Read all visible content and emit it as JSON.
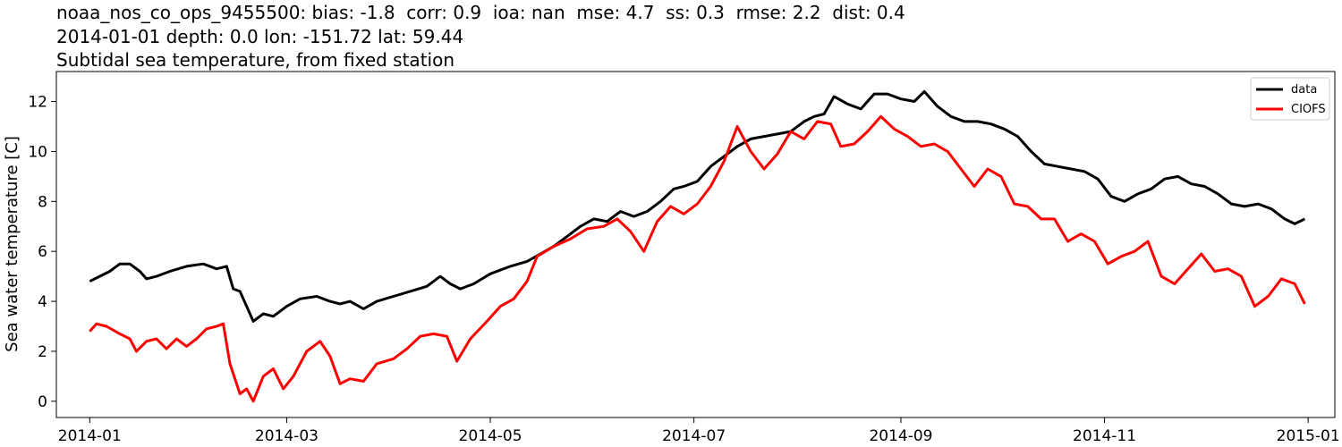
{
  "title": {
    "line1": "noaa_nos_co_ops_9455500: bias: -1.8  corr: 0.9  ioa: nan  mse: 4.7  ss: 0.3  rmse: 2.2  dist: 0.4",
    "line2": "2014-01-01 depth: 0.0 lon: -151.72 lat: 59.44",
    "line3": "Subtidal sea temperature, from fixed station"
  },
  "chart_data": {
    "type": "line",
    "ylabel": "Sea water temperature [C]",
    "xlabel": "",
    "xlim": [
      "2013-12-22",
      "2015-01-09"
    ],
    "ylim": [
      -0.65,
      13.2
    ],
    "xticks": [
      "2014-01",
      "2014-03",
      "2014-05",
      "2014-07",
      "2014-09",
      "2014-11",
      "2015-01"
    ],
    "xtick_dates": [
      "2014-01-01",
      "2014-03-01",
      "2014-05-01",
      "2014-07-01",
      "2014-09-01",
      "2014-11-01",
      "2015-01-01"
    ],
    "yticks": [
      0,
      2,
      4,
      6,
      8,
      10,
      12
    ],
    "grid": false,
    "legend": "top-right",
    "series": [
      {
        "name": "data",
        "color": "#000000",
        "points": [
          [
            "2014-01-01",
            4.8
          ],
          [
            "2014-01-04",
            5.0
          ],
          [
            "2014-01-07",
            5.2
          ],
          [
            "2014-01-10",
            5.5
          ],
          [
            "2014-01-13",
            5.5
          ],
          [
            "2014-01-16",
            5.2
          ],
          [
            "2014-01-18",
            4.9
          ],
          [
            "2014-01-21",
            5.0
          ],
          [
            "2014-01-25",
            5.2
          ],
          [
            "2014-01-30",
            5.4
          ],
          [
            "2014-02-04",
            5.5
          ],
          [
            "2014-02-08",
            5.3
          ],
          [
            "2014-02-11",
            5.4
          ],
          [
            "2014-02-13",
            4.5
          ],
          [
            "2014-02-15",
            4.4
          ],
          [
            "2014-02-17",
            3.8
          ],
          [
            "2014-02-19",
            3.2
          ],
          [
            "2014-02-22",
            3.5
          ],
          [
            "2014-02-25",
            3.4
          ],
          [
            "2014-03-01",
            3.8
          ],
          [
            "2014-03-05",
            4.1
          ],
          [
            "2014-03-10",
            4.2
          ],
          [
            "2014-03-14",
            4.0
          ],
          [
            "2014-03-17",
            3.9
          ],
          [
            "2014-03-20",
            4.0
          ],
          [
            "2014-03-24",
            3.7
          ],
          [
            "2014-03-28",
            4.0
          ],
          [
            "2014-04-02",
            4.2
          ],
          [
            "2014-04-07",
            4.4
          ],
          [
            "2014-04-12",
            4.6
          ],
          [
            "2014-04-16",
            5.0
          ],
          [
            "2014-04-19",
            4.7
          ],
          [
            "2014-04-22",
            4.5
          ],
          [
            "2014-04-26",
            4.7
          ],
          [
            "2014-05-01",
            5.1
          ],
          [
            "2014-05-07",
            5.4
          ],
          [
            "2014-05-12",
            5.6
          ],
          [
            "2014-05-16",
            5.9
          ],
          [
            "2014-05-20",
            6.2
          ],
          [
            "2014-05-24",
            6.6
          ],
          [
            "2014-05-28",
            7.0
          ],
          [
            "2014-06-01",
            7.3
          ],
          [
            "2014-06-05",
            7.2
          ],
          [
            "2014-06-09",
            7.6
          ],
          [
            "2014-06-13",
            7.4
          ],
          [
            "2014-06-17",
            7.6
          ],
          [
            "2014-06-21",
            8.0
          ],
          [
            "2014-06-25",
            8.5
          ],
          [
            "2014-06-28",
            8.6
          ],
          [
            "2014-07-02",
            8.8
          ],
          [
            "2014-07-06",
            9.4
          ],
          [
            "2014-07-10",
            9.8
          ],
          [
            "2014-07-14",
            10.2
          ],
          [
            "2014-07-18",
            10.5
          ],
          [
            "2014-07-22",
            10.6
          ],
          [
            "2014-07-26",
            10.7
          ],
          [
            "2014-07-30",
            10.8
          ],
          [
            "2014-08-03",
            11.2
          ],
          [
            "2014-08-06",
            11.4
          ],
          [
            "2014-08-09",
            11.5
          ],
          [
            "2014-08-12",
            12.2
          ],
          [
            "2014-08-16",
            11.9
          ],
          [
            "2014-08-20",
            11.7
          ],
          [
            "2014-08-24",
            12.3
          ],
          [
            "2014-08-28",
            12.3
          ],
          [
            "2014-09-01",
            12.1
          ],
          [
            "2014-09-05",
            12.0
          ],
          [
            "2014-09-08",
            12.4
          ],
          [
            "2014-09-12",
            11.8
          ],
          [
            "2014-09-16",
            11.4
          ],
          [
            "2014-09-20",
            11.2
          ],
          [
            "2014-09-24",
            11.2
          ],
          [
            "2014-09-28",
            11.1
          ],
          [
            "2014-10-02",
            10.9
          ],
          [
            "2014-10-06",
            10.6
          ],
          [
            "2014-10-10",
            10.0
          ],
          [
            "2014-10-14",
            9.5
          ],
          [
            "2014-10-18",
            9.4
          ],
          [
            "2014-10-22",
            9.3
          ],
          [
            "2014-10-26",
            9.2
          ],
          [
            "2014-10-30",
            8.9
          ],
          [
            "2014-11-03",
            8.2
          ],
          [
            "2014-11-07",
            8.0
          ],
          [
            "2014-11-11",
            8.3
          ],
          [
            "2014-11-15",
            8.5
          ],
          [
            "2014-11-19",
            8.9
          ],
          [
            "2014-11-23",
            9.0
          ],
          [
            "2014-11-27",
            8.7
          ],
          [
            "2014-12-01",
            8.6
          ],
          [
            "2014-12-05",
            8.3
          ],
          [
            "2014-12-09",
            7.9
          ],
          [
            "2014-12-13",
            7.8
          ],
          [
            "2014-12-17",
            7.9
          ],
          [
            "2014-12-21",
            7.7
          ],
          [
            "2014-12-25",
            7.3
          ],
          [
            "2014-12-28",
            7.1
          ],
          [
            "2014-12-31",
            7.3
          ]
        ]
      },
      {
        "name": "CIOFS",
        "color": "#ff0000",
        "points": [
          [
            "2014-01-01",
            2.8
          ],
          [
            "2014-01-03",
            3.1
          ],
          [
            "2014-01-06",
            3.0
          ],
          [
            "2014-01-10",
            2.7
          ],
          [
            "2014-01-13",
            2.5
          ],
          [
            "2014-01-15",
            2.0
          ],
          [
            "2014-01-18",
            2.4
          ],
          [
            "2014-01-21",
            2.5
          ],
          [
            "2014-01-24",
            2.1
          ],
          [
            "2014-01-27",
            2.5
          ],
          [
            "2014-01-30",
            2.2
          ],
          [
            "2014-02-02",
            2.5
          ],
          [
            "2014-02-05",
            2.9
          ],
          [
            "2014-02-08",
            3.0
          ],
          [
            "2014-02-10",
            3.1
          ],
          [
            "2014-02-12",
            1.5
          ],
          [
            "2014-02-15",
            0.3
          ],
          [
            "2014-02-17",
            0.5
          ],
          [
            "2014-02-19",
            0.0
          ],
          [
            "2014-02-22",
            1.0
          ],
          [
            "2014-02-25",
            1.3
          ],
          [
            "2014-02-28",
            0.5
          ],
          [
            "2014-03-03",
            1.0
          ],
          [
            "2014-03-07",
            2.0
          ],
          [
            "2014-03-11",
            2.4
          ],
          [
            "2014-03-14",
            1.8
          ],
          [
            "2014-03-17",
            0.7
          ],
          [
            "2014-03-20",
            0.9
          ],
          [
            "2014-03-24",
            0.8
          ],
          [
            "2014-03-28",
            1.5
          ],
          [
            "2014-04-02",
            1.7
          ],
          [
            "2014-04-06",
            2.1
          ],
          [
            "2014-04-10",
            2.6
          ],
          [
            "2014-04-14",
            2.7
          ],
          [
            "2014-04-18",
            2.6
          ],
          [
            "2014-04-21",
            1.6
          ],
          [
            "2014-04-25",
            2.5
          ],
          [
            "2014-04-30",
            3.2
          ],
          [
            "2014-05-04",
            3.8
          ],
          [
            "2014-05-08",
            4.1
          ],
          [
            "2014-05-12",
            4.8
          ],
          [
            "2014-05-15",
            5.8
          ],
          [
            "2014-05-20",
            6.2
          ],
          [
            "2014-05-25",
            6.5
          ],
          [
            "2014-05-30",
            6.9
          ],
          [
            "2014-06-04",
            7.0
          ],
          [
            "2014-06-08",
            7.3
          ],
          [
            "2014-06-12",
            6.8
          ],
          [
            "2014-06-16",
            6.0
          ],
          [
            "2014-06-20",
            7.2
          ],
          [
            "2014-06-24",
            7.8
          ],
          [
            "2014-06-28",
            7.5
          ],
          [
            "2014-07-02",
            7.9
          ],
          [
            "2014-07-06",
            8.6
          ],
          [
            "2014-07-10",
            9.6
          ],
          [
            "2014-07-14",
            11.0
          ],
          [
            "2014-07-18",
            10.0
          ],
          [
            "2014-07-22",
            9.3
          ],
          [
            "2014-07-26",
            9.9
          ],
          [
            "2014-07-30",
            10.8
          ],
          [
            "2014-08-03",
            10.5
          ],
          [
            "2014-08-07",
            11.2
          ],
          [
            "2014-08-11",
            11.1
          ],
          [
            "2014-08-14",
            10.2
          ],
          [
            "2014-08-18",
            10.3
          ],
          [
            "2014-08-22",
            10.8
          ],
          [
            "2014-08-26",
            11.4
          ],
          [
            "2014-08-30",
            10.9
          ],
          [
            "2014-09-03",
            10.6
          ],
          [
            "2014-09-07",
            10.2
          ],
          [
            "2014-09-11",
            10.3
          ],
          [
            "2014-09-15",
            10.0
          ],
          [
            "2014-09-19",
            9.3
          ],
          [
            "2014-09-23",
            8.6
          ],
          [
            "2014-09-27",
            9.3
          ],
          [
            "2014-10-01",
            9.0
          ],
          [
            "2014-10-05",
            7.9
          ],
          [
            "2014-10-09",
            7.8
          ],
          [
            "2014-10-13",
            7.3
          ],
          [
            "2014-10-17",
            7.3
          ],
          [
            "2014-10-21",
            6.4
          ],
          [
            "2014-10-25",
            6.7
          ],
          [
            "2014-10-29",
            6.4
          ],
          [
            "2014-11-02",
            5.5
          ],
          [
            "2014-11-06",
            5.8
          ],
          [
            "2014-11-10",
            6.0
          ],
          [
            "2014-11-14",
            6.4
          ],
          [
            "2014-11-18",
            5.0
          ],
          [
            "2014-11-22",
            4.7
          ],
          [
            "2014-11-26",
            5.3
          ],
          [
            "2014-11-30",
            5.9
          ],
          [
            "2014-12-04",
            5.2
          ],
          [
            "2014-12-08",
            5.3
          ],
          [
            "2014-12-12",
            5.0
          ],
          [
            "2014-12-16",
            3.8
          ],
          [
            "2014-12-20",
            4.2
          ],
          [
            "2014-12-24",
            4.9
          ],
          [
            "2014-12-28",
            4.7
          ],
          [
            "2014-12-31",
            3.9
          ]
        ]
      }
    ]
  }
}
